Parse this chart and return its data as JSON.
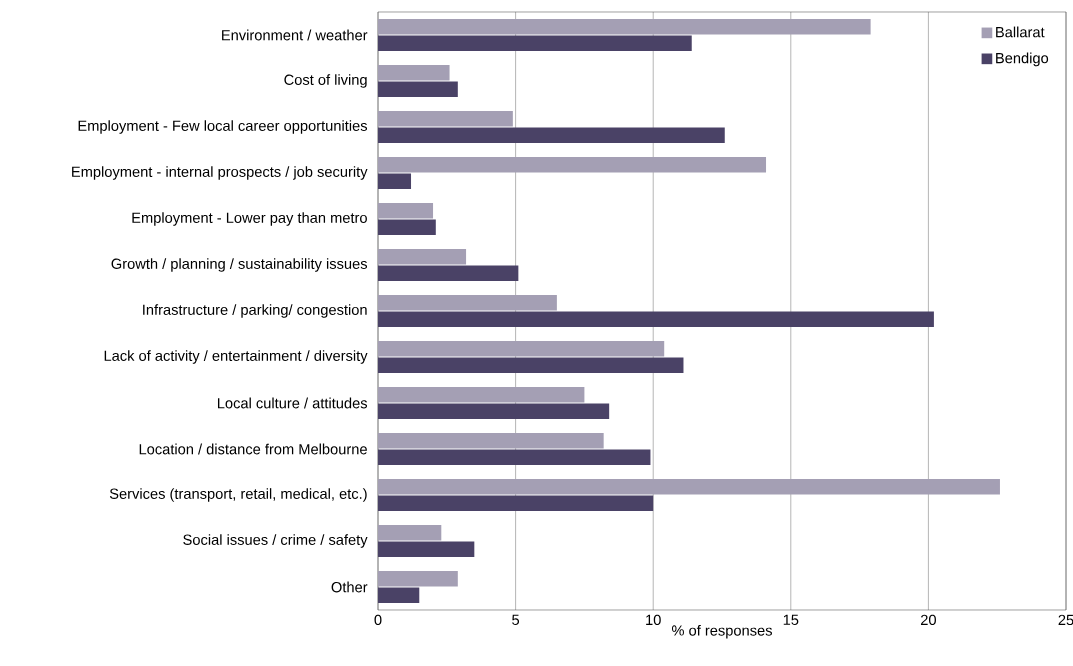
{
  "chart_data": {
    "type": "bar",
    "orientation": "horizontal",
    "xlabel": "% of responses",
    "categories": [
      "Environment / weather",
      "Cost of living",
      "Employment - Few local career opportunities",
      "Employment - internal prospects / job security",
      "Employment - Lower pay than metro",
      "Growth / planning / sustainability issues",
      "Infrastructure / parking/ congestion",
      "Lack of activity / entertainment / diversity",
      "Local culture / attitudes",
      "Location / distance from Melbourne",
      "Services (transport, retail, medical, etc.)",
      "Social issues / crime / safety",
      "Other"
    ],
    "series": [
      {
        "name": "Ballarat",
        "color": "#a49fb4",
        "values": [
          17.9,
          2.6,
          4.9,
          14.1,
          2.0,
          3.2,
          6.5,
          10.4,
          7.5,
          8.2,
          22.6,
          2.3,
          2.9
        ]
      },
      {
        "name": "Bendigo",
        "color": "#4a4266",
        "values": [
          11.4,
          2.9,
          12.6,
          1.2,
          2.1,
          5.1,
          20.2,
          11.1,
          8.4,
          9.9,
          10.0,
          3.5,
          1.5
        ]
      }
    ],
    "xlim": [
      0,
      25
    ],
    "xticks": [
      0,
      5,
      10,
      15,
      20,
      25
    ],
    "grid": "x",
    "legend": "top right"
  }
}
